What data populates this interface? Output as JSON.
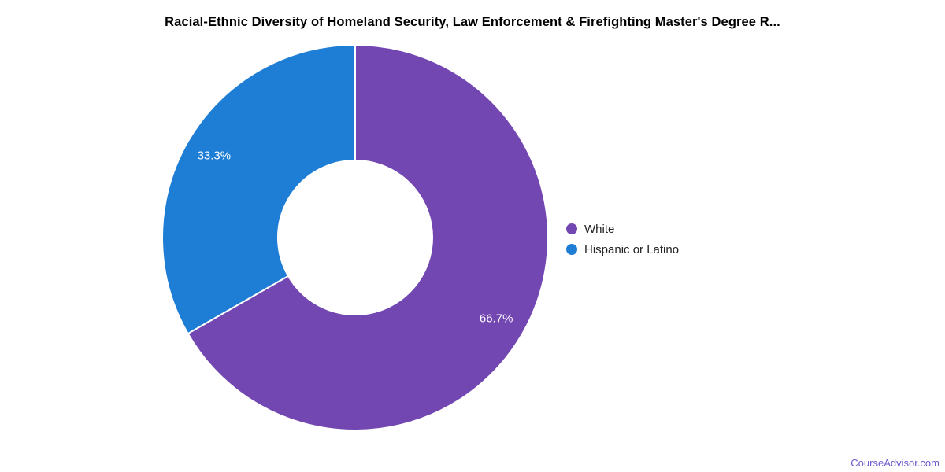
{
  "title": "Racial-Ethnic Diversity of Homeland Security, Law Enforcement & Firefighting Master's Degree R...",
  "chart_data": {
    "type": "pie",
    "subtype": "donut",
    "hole_ratio": 0.4,
    "title": "Racial-Ethnic Diversity of Homeland Security, Law Enforcement & Firefighting Master's Degree R...",
    "categories": [
      "White",
      "Hispanic or Latino"
    ],
    "values": [
      66.7,
      33.3
    ],
    "slice_labels": [
      "66.7%",
      "33.3%"
    ],
    "colors": [
      "#7347B2",
      "#1E7DD4"
    ],
    "slice_label_color": "#ffffff",
    "stroke_color": "#ffffff",
    "legend_position": "right",
    "background": "#ffffff"
  },
  "legend": {
    "items": [
      {
        "label": "White",
        "color": "#7347B2"
      },
      {
        "label": "Hispanic or Latino",
        "color": "#1E7DD4"
      }
    ]
  },
  "footer": {
    "brand": "CourseAdvisor.com",
    "color": "#6A5ACD"
  }
}
